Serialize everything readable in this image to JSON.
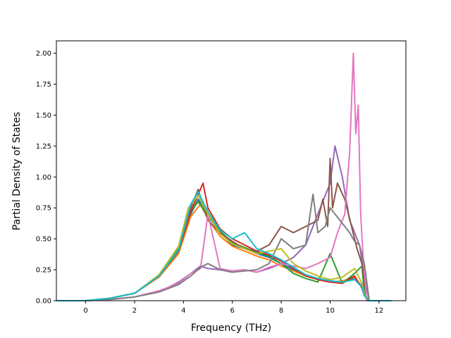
{
  "chart_data": {
    "type": "line",
    "title": "",
    "xlabel": "Frequency (THz)",
    "ylabel": "Partial Density of States",
    "xlim": [
      -1.2,
      13.1
    ],
    "ylim": [
      0,
      2.1
    ],
    "xticks": [
      0,
      2,
      4,
      6,
      8,
      10,
      12
    ],
    "xtick_labels": [
      "0",
      "2",
      "4",
      "6",
      "8",
      "10",
      "12"
    ],
    "yticks": [
      0,
      0.25,
      0.5,
      0.75,
      1.0,
      1.25,
      1.5,
      1.75,
      2.0
    ],
    "ytick_labels": [
      "0.00",
      "0.25",
      "0.50",
      "0.75",
      "1.00",
      "1.25",
      "1.50",
      "1.75",
      "2.00"
    ],
    "grid": false,
    "legend": "none",
    "series": [
      {
        "color": "#1f77b4",
        "x": [
          -1.2,
          0,
          1,
          2,
          3,
          3.8,
          4.3,
          4.6,
          5.0,
          5.5,
          6.0,
          6.5,
          7.0,
          7.5,
          8.0,
          8.5,
          9.0,
          9.5,
          10.0,
          10.5,
          11.0,
          11.3,
          11.4,
          11.6,
          12.5
        ],
        "y": [
          0,
          0,
          0.02,
          0.06,
          0.2,
          0.4,
          0.7,
          0.82,
          0.7,
          0.55,
          0.45,
          0.42,
          0.38,
          0.35,
          0.3,
          0.25,
          0.2,
          0.18,
          0.16,
          0.15,
          0.18,
          0.12,
          0.05,
          0,
          0
        ]
      },
      {
        "color": "#ff7f0e",
        "x": [
          -1.2,
          0,
          1,
          2,
          3,
          3.8,
          4.3,
          4.7,
          5.0,
          5.5,
          6.0,
          6.5,
          7.0,
          7.5,
          8.0,
          8.5,
          9.0,
          9.5,
          10.0,
          10.5,
          11.0,
          11.3,
          11.4,
          11.6,
          12.5
        ],
        "y": [
          0,
          0,
          0.02,
          0.06,
          0.19,
          0.38,
          0.68,
          0.78,
          0.66,
          0.52,
          0.44,
          0.4,
          0.36,
          0.33,
          0.28,
          0.24,
          0.2,
          0.17,
          0.15,
          0.16,
          0.19,
          0.11,
          0.04,
          0,
          0
        ]
      },
      {
        "color": "#2ca02c",
        "x": [
          -1.2,
          0,
          1,
          2,
          3,
          3.8,
          4.3,
          4.6,
          5.0,
          5.5,
          6.0,
          6.5,
          7.0,
          7.5,
          8.0,
          8.5,
          9.0,
          9.5,
          10.0,
          10.5,
          11.0,
          11.3,
          11.4,
          11.6,
          12.5
        ],
        "y": [
          0,
          0,
          0.02,
          0.06,
          0.2,
          0.42,
          0.72,
          0.8,
          0.68,
          0.56,
          0.47,
          0.43,
          0.39,
          0.36,
          0.3,
          0.22,
          0.18,
          0.15,
          0.38,
          0.14,
          0.22,
          0.28,
          0.06,
          0,
          0
        ]
      },
      {
        "color": "#d62728",
        "x": [
          -1.2,
          0,
          1,
          2,
          3,
          3.8,
          4.3,
          4.8,
          5.0,
          5.5,
          6.0,
          6.5,
          7.0,
          7.5,
          8.0,
          8.5,
          9.0,
          9.5,
          10.0,
          10.5,
          11.0,
          11.3,
          11.4,
          11.6,
          12.5
        ],
        "y": [
          0,
          0,
          0.02,
          0.06,
          0.2,
          0.4,
          0.72,
          0.95,
          0.75,
          0.58,
          0.5,
          0.45,
          0.4,
          0.37,
          0.32,
          0.26,
          0.2,
          0.17,
          0.15,
          0.14,
          0.2,
          0.1,
          0.04,
          0,
          0
        ]
      },
      {
        "color": "#9467bd",
        "x": [
          -1.2,
          0,
          1,
          2,
          3,
          3.8,
          4.3,
          4.7,
          5.0,
          5.5,
          6.0,
          6.5,
          7.0,
          7.5,
          8.0,
          8.5,
          9.0,
          9.5,
          9.8,
          10.0,
          10.2,
          10.5,
          10.8,
          11.0,
          11.2,
          11.4,
          11.6,
          12.5
        ],
        "y": [
          0,
          0,
          0.01,
          0.03,
          0.07,
          0.15,
          0.22,
          0.28,
          0.26,
          0.25,
          0.24,
          0.25,
          0.23,
          0.26,
          0.3,
          0.35,
          0.45,
          0.7,
          0.85,
          0.95,
          1.25,
          1.0,
          0.65,
          0.55,
          0.45,
          0.2,
          0,
          0
        ]
      },
      {
        "color": "#8c564b",
        "x": [
          -1.2,
          0,
          1,
          2,
          3,
          3.8,
          4.3,
          4.6,
          5.0,
          5.5,
          6.0,
          6.5,
          7.0,
          7.5,
          8.0,
          8.5,
          9.0,
          9.5,
          9.7,
          9.9,
          10.0,
          10.1,
          10.3,
          10.6,
          10.9,
          11.1,
          11.3,
          11.5,
          12.5
        ],
        "y": [
          0,
          0,
          0.02,
          0.06,
          0.2,
          0.4,
          0.75,
          0.9,
          0.65,
          0.55,
          0.48,
          0.42,
          0.4,
          0.45,
          0.6,
          0.55,
          0.6,
          0.65,
          0.82,
          0.6,
          1.15,
          0.75,
          0.95,
          0.82,
          0.58,
          0.42,
          0.3,
          0,
          0
        ]
      },
      {
        "color": "#e377c2",
        "x": [
          -1.2,
          0,
          1,
          2,
          3,
          3.8,
          4.3,
          4.7,
          5.0,
          5.5,
          6.0,
          6.5,
          7.0,
          7.5,
          8.0,
          8.5,
          9.0,
          9.5,
          10.0,
          10.3,
          10.6,
          10.8,
          10.95,
          11.05,
          11.15,
          11.25,
          11.35,
          11.5,
          12.5
        ],
        "y": [
          0,
          0,
          0.01,
          0.03,
          0.08,
          0.14,
          0.22,
          0.26,
          0.7,
          0.26,
          0.24,
          0.25,
          0.23,
          0.27,
          0.3,
          0.28,
          0.26,
          0.3,
          0.35,
          0.55,
          0.7,
          1.2,
          2.0,
          1.35,
          1.58,
          0.7,
          0.35,
          0,
          0
        ]
      },
      {
        "color": "#7f7f7f",
        "x": [
          -1.2,
          0,
          1,
          2,
          3,
          3.8,
          4.3,
          4.7,
          5.0,
          5.5,
          6.0,
          6.5,
          7.0,
          7.5,
          8.0,
          8.5,
          9.0,
          9.3,
          9.5,
          9.8,
          10.0,
          10.4,
          10.8,
          11.0,
          11.2,
          11.4,
          11.6,
          12.5
        ],
        "y": [
          0,
          0,
          0.01,
          0.03,
          0.07,
          0.13,
          0.2,
          0.27,
          0.3,
          0.25,
          0.23,
          0.24,
          0.25,
          0.3,
          0.5,
          0.42,
          0.45,
          0.86,
          0.55,
          0.6,
          0.75,
          0.65,
          0.55,
          0.48,
          0.45,
          0.3,
          0,
          0
        ]
      },
      {
        "color": "#bcbd22",
        "x": [
          -1.2,
          0,
          1,
          2,
          3,
          3.8,
          4.2,
          4.6,
          5.0,
          5.5,
          6.0,
          6.5,
          7.0,
          7.5,
          8.0,
          8.5,
          9.0,
          9.5,
          10.0,
          10.5,
          11.0,
          11.3,
          11.4,
          11.6,
          12.5
        ],
        "y": [
          0,
          0,
          0.02,
          0.06,
          0.21,
          0.44,
          0.75,
          0.85,
          0.7,
          0.54,
          0.46,
          0.42,
          0.38,
          0.4,
          0.42,
          0.3,
          0.24,
          0.2,
          0.17,
          0.19,
          0.26,
          0.14,
          0.05,
          0,
          0
        ]
      },
      {
        "color": "#17becf",
        "x": [
          -1.2,
          0,
          1,
          2,
          3,
          3.8,
          4.3,
          4.6,
          5.0,
          5.5,
          6.0,
          6.5,
          7.0,
          7.5,
          8.0,
          8.5,
          9.0,
          9.5,
          10.0,
          10.5,
          11.0,
          11.3,
          11.4,
          11.6,
          12.5
        ],
        "y": [
          0,
          0,
          0.02,
          0.06,
          0.2,
          0.41,
          0.78,
          0.88,
          0.72,
          0.57,
          0.5,
          0.55,
          0.42,
          0.38,
          0.33,
          0.27,
          0.21,
          0.18,
          0.16,
          0.15,
          0.17,
          0.11,
          0.04,
          0,
          0
        ]
      }
    ]
  }
}
